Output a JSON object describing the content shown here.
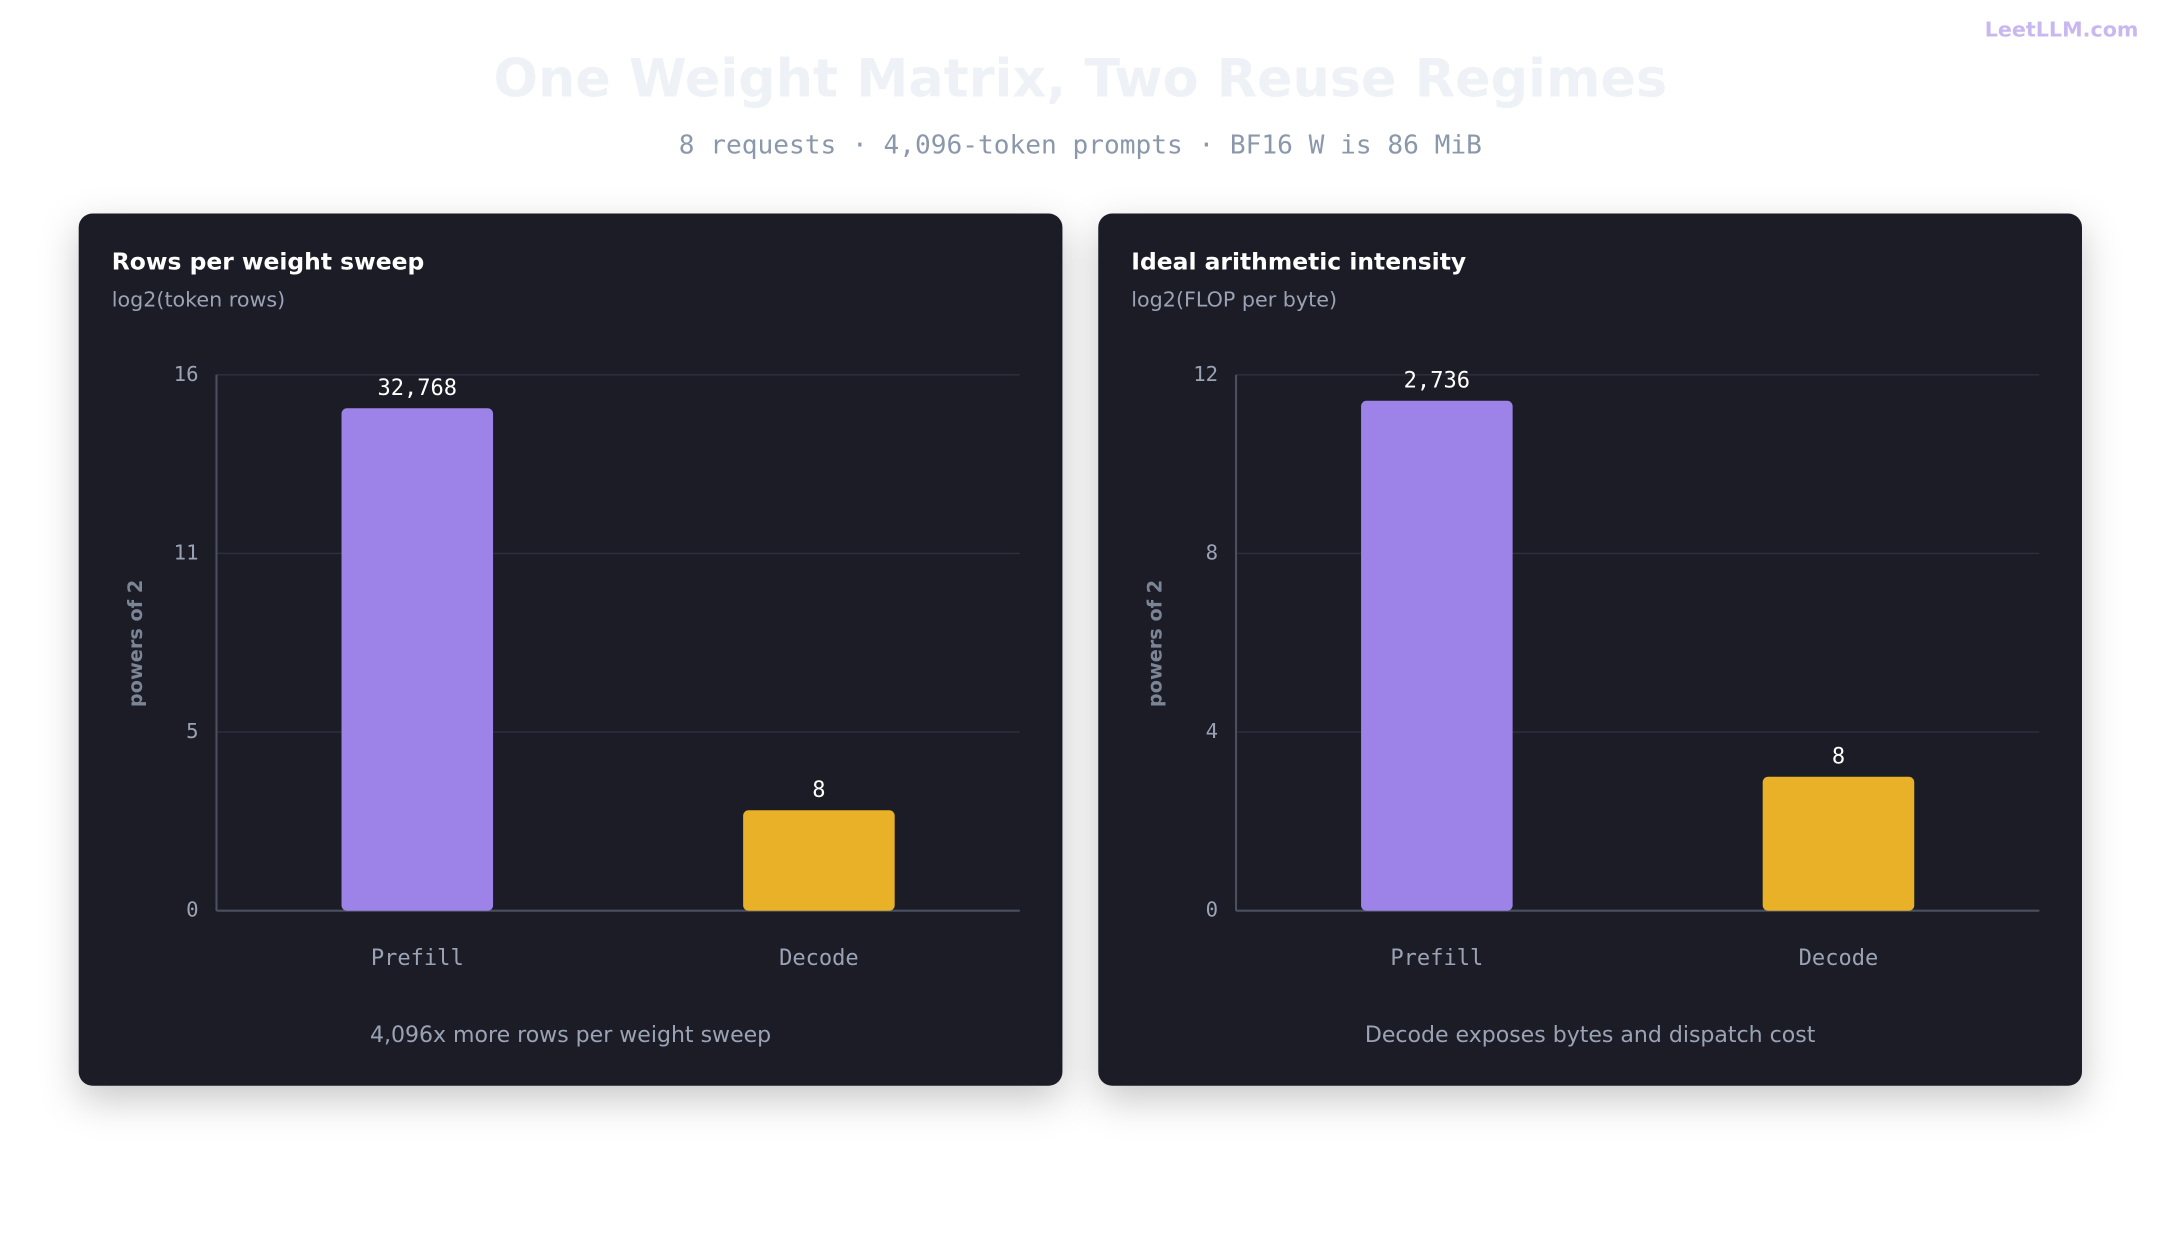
{
  "header": {
    "title": "One Weight Matrix, Two Reuse Regimes",
    "subtitle": "8 requests · 4,096-token prompts · BF16 W is 86 MiB",
    "brand": "LeetLLM.com"
  },
  "chart_data": [
    {
      "type": "bar",
      "title": "Rows per weight sweep",
      "subtitle": "log2(token rows)",
      "y_label": "powers of 2",
      "categories": [
        "Prefill",
        "Decode"
      ],
      "values": [
        15,
        3
      ],
      "value_labels": [
        "32,768",
        "8"
      ],
      "colors": [
        "#9d83e8",
        "#e8b127"
      ],
      "ylim": [
        0,
        16
      ],
      "yticks": [
        0,
        {
          "value": 5.333,
          "label": "5"
        },
        {
          "value": 10.667,
          "label": "11"
        },
        16
      ],
      "grid": true,
      "footnote": "4,096x more rows per weight sweep"
    },
    {
      "type": "bar",
      "title": "Ideal arithmetic intensity",
      "subtitle": "log2(FLOP per byte)",
      "y_label": "powers of 2",
      "categories": [
        "Prefill",
        "Decode"
      ],
      "values": [
        11.418,
        3
      ],
      "value_labels": [
        "2,736",
        "8"
      ],
      "colors": [
        "#9d83e8",
        "#e8b127"
      ],
      "ylim": [
        0,
        12
      ],
      "yticks": [
        0,
        4,
        8,
        12
      ],
      "grid": true,
      "footnote": "Decode exposes bytes and dispatch cost"
    }
  ]
}
